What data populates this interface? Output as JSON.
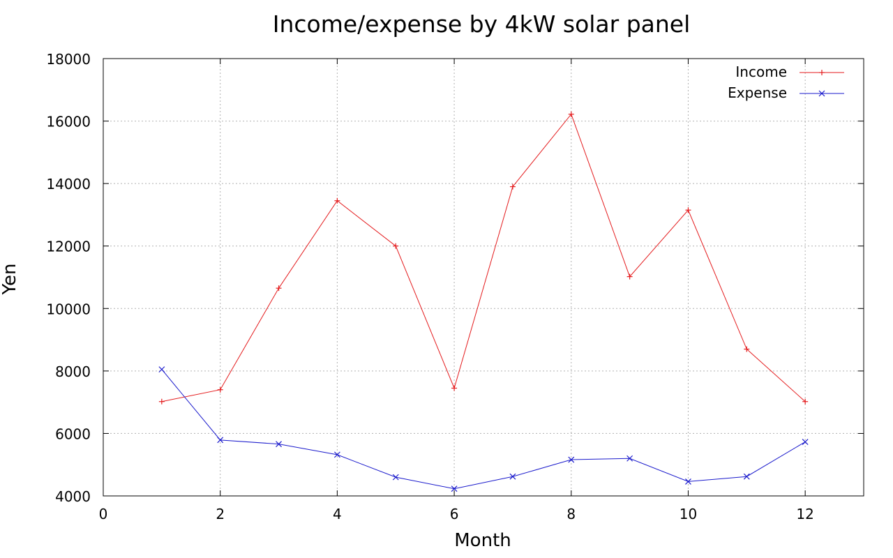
{
  "chart_data": {
    "type": "line",
    "title": "Income/expense by 4kW solar panel",
    "xlabel": "Month",
    "ylabel": "Yen",
    "xlim": [
      0,
      13
    ],
    "ylim": [
      4000,
      18000
    ],
    "xticks": [
      0,
      2,
      4,
      6,
      8,
      10,
      12
    ],
    "yticks": [
      4000,
      6000,
      8000,
      10000,
      12000,
      14000,
      16000,
      18000
    ],
    "grid": true,
    "legend_position": "top-right",
    "x": [
      1,
      2,
      3,
      4,
      5,
      6,
      7,
      8,
      9,
      10,
      11,
      12
    ],
    "series": [
      {
        "name": "Income",
        "color": "#e41a1c",
        "marker": "plus",
        "values": [
          7020,
          7400,
          10650,
          13450,
          12000,
          7450,
          13900,
          16220,
          11020,
          13150,
          8700,
          7020
        ]
      },
      {
        "name": "Expense",
        "color": "#1a1acc",
        "marker": "cross",
        "values": [
          8050,
          5790,
          5660,
          5320,
          4600,
          4230,
          4620,
          5160,
          5200,
          4460,
          4620,
          5730
        ]
      }
    ]
  }
}
